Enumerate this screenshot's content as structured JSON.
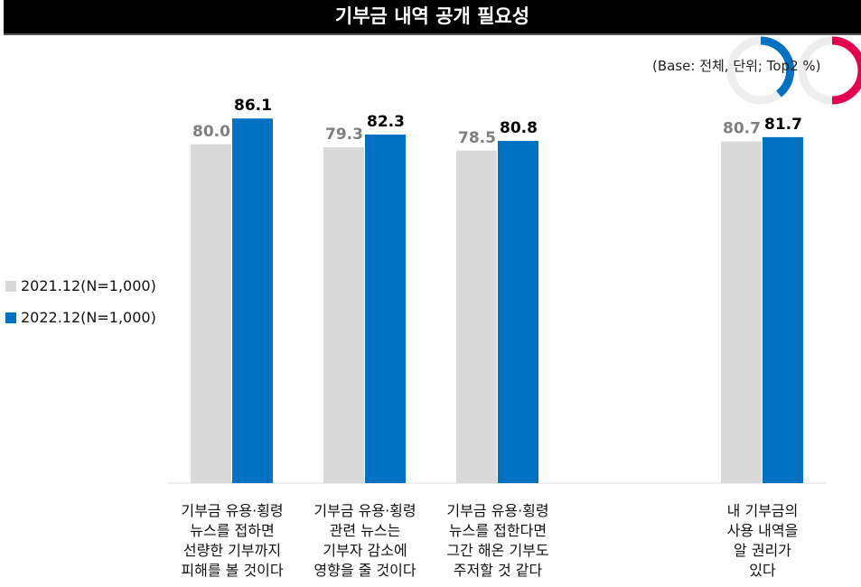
{
  "title": "기부금 내역 공개 필요성",
  "base_note": "(Base: 전체, 단위; Top2 %)",
  "colors": {
    "2021": "#d9d9d9",
    "2022": "#0070c0",
    "label_2021": "#7f7f7f",
    "label_2022": "#000000"
  },
  "chart_data": {
    "type": "bar",
    "title": "기부금 내역 공개 필요성",
    "categories": [
      "기부금 유용·횡령\n뉴스를 접하면\n선량한 기부까지\n피해를 볼 것이다",
      "기부금 유용·횡령\n관련 뉴스는\n기부자 감소에\n영향을 줄 것이다",
      "기부금 유용·횡령\n뉴스를 접한다면\n그간 해온 기부도\n주저할 것 같다",
      "내 기부금의\n사용 내역을\n알 권리가\n있다"
    ],
    "series": [
      {
        "name": "2021.12(N=1,000)",
        "values": [
          80.0,
          79.3,
          78.5,
          80.7
        ]
      },
      {
        "name": "2022.12(N=1,000)",
        "values": [
          86.1,
          82.3,
          80.8,
          81.7
        ]
      }
    ],
    "ylim": [
      0,
      100
    ],
    "legend": "left",
    "grid": false
  }
}
